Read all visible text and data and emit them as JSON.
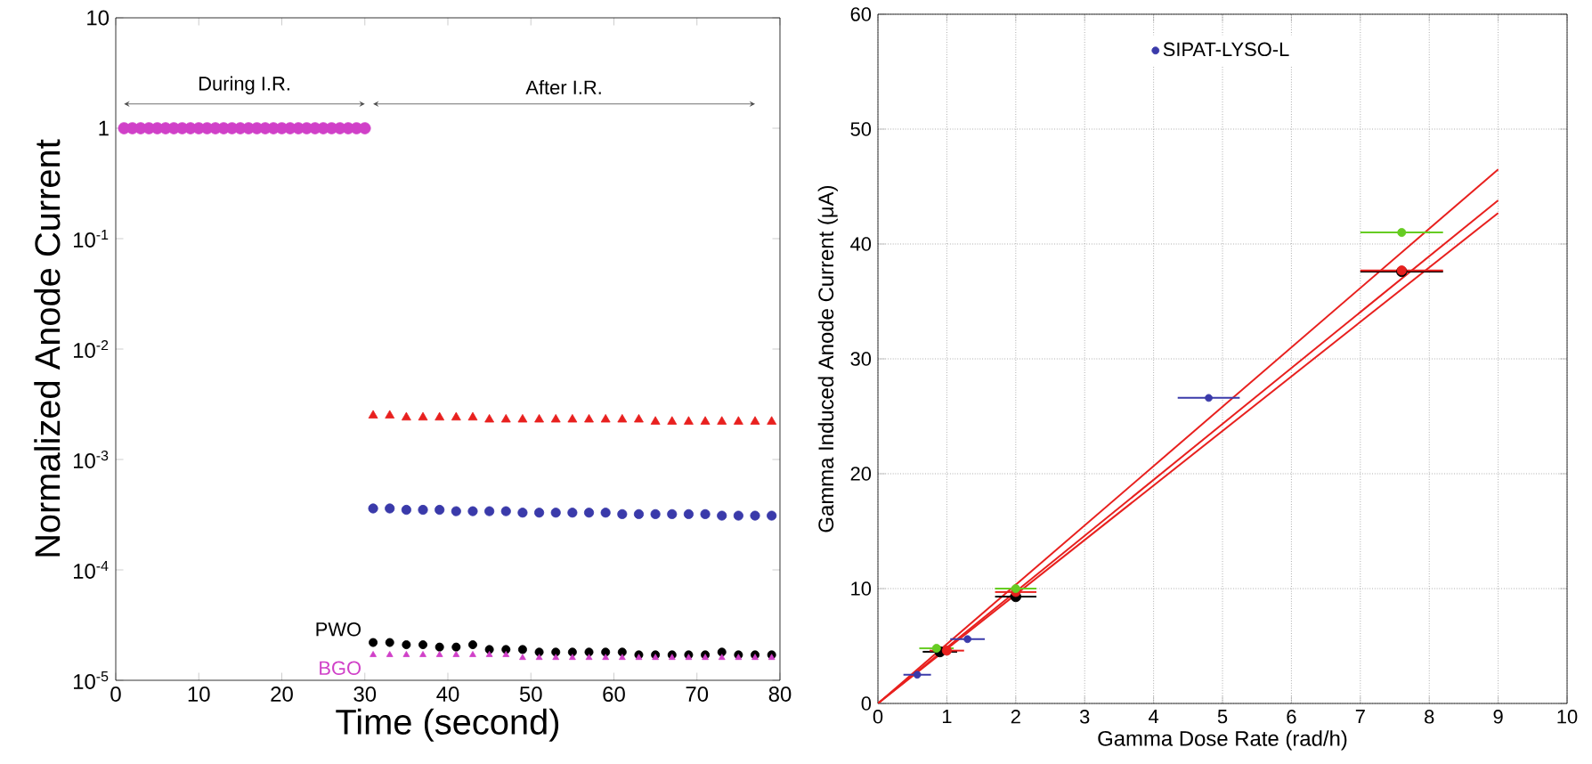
{
  "chart_data": [
    {
      "type": "scatter",
      "xlabel": "Time (second)",
      "ylabel": "Normalized Anode Current",
      "log": "y",
      "xlim": [
        0,
        80
      ],
      "ylim": [
        1e-05,
        10
      ],
      "xticks": [
        0,
        10,
        20,
        30,
        40,
        50,
        60,
        70,
        80
      ],
      "yticks": [
        10,
        1,
        {
          "value": 0.1,
          "label": "10$^{-1}$"
        },
        {
          "value": 0.01,
          "label": "10$^{-2}$"
        },
        {
          "value": 0.001,
          "label": "10$^{-3}$"
        },
        {
          "value": 0.0001,
          "label": "10$^{-4}$"
        },
        {
          "value": 1e-05,
          "label": "10$^{-5}$"
        }
      ],
      "annotations": [
        "During I.R.",
        "After I.R."
      ],
      "series": [
        {
          "color": "#d040c8",
          "marker": "circle",
          "x": [
            1,
            2,
            3,
            4,
            5,
            6,
            7,
            8,
            9,
            10,
            11,
            12,
            13,
            14,
            15,
            16,
            17,
            18,
            19,
            20,
            21,
            22,
            23,
            24,
            25,
            26,
            27,
            28,
            29,
            30
          ],
          "values": [
            1,
            1,
            1,
            1,
            1,
            1,
            1,
            1,
            1,
            1,
            1,
            1,
            1,
            1,
            1,
            1,
            1,
            1,
            1,
            1,
            1,
            1,
            1,
            1,
            1,
            1,
            1,
            1,
            1,
            1
          ]
        },
        {
          "color": "#e8201e",
          "marker": "triangle",
          "x": [
            31,
            33,
            35,
            37,
            39,
            41,
            43,
            45,
            47,
            49,
            51,
            53,
            55,
            57,
            59,
            61,
            63,
            65,
            67,
            69,
            71,
            73,
            75,
            77,
            79
          ],
          "values": [
            0.0025,
            0.0025,
            0.0024,
            0.0024,
            0.0024,
            0.0024,
            0.0024,
            0.0023,
            0.0023,
            0.0023,
            0.0023,
            0.0023,
            0.0023,
            0.0023,
            0.0023,
            0.0023,
            0.0023,
            0.0022,
            0.0022,
            0.0022,
            0.0022,
            0.0022,
            0.0022,
            0.0022,
            0.0022
          ]
        },
        {
          "color": "#3a3aaa",
          "marker": "circle",
          "x": [
            31,
            33,
            35,
            37,
            39,
            41,
            43,
            45,
            47,
            49,
            51,
            53,
            55,
            57,
            59,
            61,
            63,
            65,
            67,
            69,
            71,
            73,
            75,
            77,
            79
          ],
          "values": [
            0.00036,
            0.00036,
            0.00035,
            0.00035,
            0.00035,
            0.00034,
            0.00034,
            0.00034,
            0.00034,
            0.00033,
            0.00033,
            0.00033,
            0.00033,
            0.00033,
            0.00033,
            0.00032,
            0.00032,
            0.00032,
            0.00032,
            0.00032,
            0.00032,
            0.00031,
            0.00031,
            0.00031,
            0.00031
          ]
        },
        {
          "name": "PWO",
          "color": "#000000",
          "marker": "circle",
          "x": [
            31,
            33,
            35,
            37,
            39,
            41,
            43,
            45,
            47,
            49,
            51,
            53,
            55,
            57,
            59,
            61,
            63,
            65,
            67,
            69,
            71,
            73,
            75,
            77,
            79
          ],
          "values": [
            2.2e-05,
            2.2e-05,
            2.1e-05,
            2.1e-05,
            2e-05,
            2e-05,
            2.1e-05,
            1.9e-05,
            1.9e-05,
            1.9e-05,
            1.8e-05,
            1.8e-05,
            1.8e-05,
            1.8e-05,
            1.8e-05,
            1.8e-05,
            1.7e-05,
            1.7e-05,
            1.7e-05,
            1.7e-05,
            1.7e-05,
            1.8e-05,
            1.7e-05,
            1.7e-05,
            1.7e-05
          ]
        },
        {
          "name": "BGO",
          "color": "#d040c8",
          "marker": "triangle",
          "x": [
            31,
            33,
            35,
            37,
            39,
            41,
            43,
            45,
            47,
            49,
            51,
            53,
            55,
            57,
            59,
            61,
            63,
            65,
            67,
            69,
            71,
            73,
            75,
            77,
            79
          ],
          "values": [
            1.7e-05,
            1.7e-05,
            1.7e-05,
            1.7e-05,
            1.7e-05,
            1.7e-05,
            1.7e-05,
            1.7e-05,
            1.7e-05,
            1.6e-05,
            1.6e-05,
            1.6e-05,
            1.6e-05,
            1.6e-05,
            1.6e-05,
            1.6e-05,
            1.6e-05,
            1.6e-05,
            1.6e-05,
            1.6e-05,
            1.6e-05,
            1.6e-05,
            1.6e-05,
            1.6e-05,
            1.6e-05
          ]
        }
      ]
    },
    {
      "type": "scatter",
      "xlabel": "Gamma Dose Rate (rad/h)",
      "ylabel": "Gamma Induced Anode Current (μA)",
      "xlim": [
        0,
        10
      ],
      "ylim": [
        0,
        60
      ],
      "xticks": [
        0,
        1,
        2,
        3,
        4,
        5,
        6,
        7,
        8,
        9,
        10
      ],
      "yticks": [
        0,
        10,
        20,
        30,
        40,
        50,
        60
      ],
      "grid": true,
      "legend": "top",
      "series": [
        {
          "type": "line",
          "color": "#e8201e",
          "marker": "none",
          "x": [
            0,
            9
          ],
          "values": [
            0,
            46.5
          ]
        },
        {
          "type": "line",
          "color": "#e8201e",
          "marker": "none",
          "x": [
            0,
            9
          ],
          "values": [
            0,
            43.8
          ]
        },
        {
          "type": "line",
          "color": "#e8201e",
          "marker": "none",
          "x": [
            0,
            9
          ],
          "values": [
            0,
            42.7
          ]
        },
        {
          "color": "#000000",
          "marker": "circle",
          "x": [
            0.9,
            2.0,
            7.6
          ],
          "values": [
            4.5,
            9.3,
            37.6
          ],
          "xerrors": [
            0.25,
            0.3,
            0.6
          ]
        },
        {
          "color": "#e8201e",
          "marker": "circle",
          "x": [
            1.0,
            2.0,
            7.6
          ],
          "values": [
            4.6,
            9.7,
            37.7
          ],
          "xerrors": [
            0.25,
            0.3,
            0.6
          ]
        },
        {
          "color": "#66cc22",
          "marker": "circle",
          "x": [
            0.85,
            2.0,
            7.6
          ],
          "values": [
            4.8,
            10.0,
            41.0
          ],
          "xerrors": [
            0.25,
            0.3,
            0.6
          ]
        },
        {
          "name": "SIPAT-LYSO-L",
          "color": "#3a3aaa",
          "marker": "circle",
          "x": [
            0.57,
            1.3,
            4.8
          ],
          "values": [
            2.5,
            5.6,
            26.6
          ],
          "xerrors": [
            0.2,
            0.25,
            0.45
          ]
        }
      ]
    }
  ]
}
